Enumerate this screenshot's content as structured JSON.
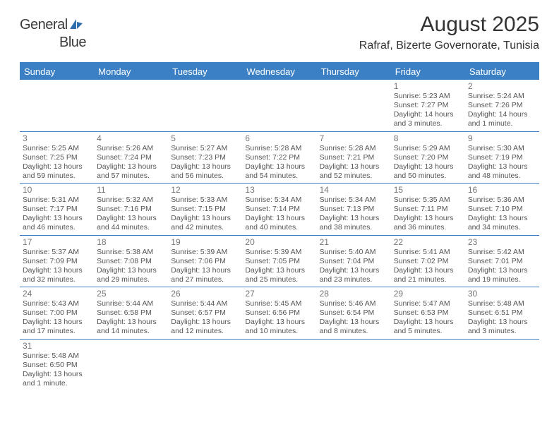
{
  "logo": {
    "general": "General",
    "blue": "Blue"
  },
  "title": "August 2025",
  "location": "Rafraf, Bizerte Governorate, Tunisia",
  "colors": {
    "header_bg": "#3b7fc4",
    "header_text": "#ffffff",
    "border": "#3b7fc4",
    "text": "#555555",
    "daynum": "#777777"
  },
  "daynames": [
    "Sunday",
    "Monday",
    "Tuesday",
    "Wednesday",
    "Thursday",
    "Friday",
    "Saturday"
  ],
  "weeks": [
    [
      null,
      null,
      null,
      null,
      null,
      {
        "n": "1",
        "sr": "Sunrise: 5:23 AM",
        "ss": "Sunset: 7:27 PM",
        "d1": "Daylight: 14 hours",
        "d2": "and 3 minutes."
      },
      {
        "n": "2",
        "sr": "Sunrise: 5:24 AM",
        "ss": "Sunset: 7:26 PM",
        "d1": "Daylight: 14 hours",
        "d2": "and 1 minute."
      }
    ],
    [
      {
        "n": "3",
        "sr": "Sunrise: 5:25 AM",
        "ss": "Sunset: 7:25 PM",
        "d1": "Daylight: 13 hours",
        "d2": "and 59 minutes."
      },
      {
        "n": "4",
        "sr": "Sunrise: 5:26 AM",
        "ss": "Sunset: 7:24 PM",
        "d1": "Daylight: 13 hours",
        "d2": "and 57 minutes."
      },
      {
        "n": "5",
        "sr": "Sunrise: 5:27 AM",
        "ss": "Sunset: 7:23 PM",
        "d1": "Daylight: 13 hours",
        "d2": "and 56 minutes."
      },
      {
        "n": "6",
        "sr": "Sunrise: 5:28 AM",
        "ss": "Sunset: 7:22 PM",
        "d1": "Daylight: 13 hours",
        "d2": "and 54 minutes."
      },
      {
        "n": "7",
        "sr": "Sunrise: 5:28 AM",
        "ss": "Sunset: 7:21 PM",
        "d1": "Daylight: 13 hours",
        "d2": "and 52 minutes."
      },
      {
        "n": "8",
        "sr": "Sunrise: 5:29 AM",
        "ss": "Sunset: 7:20 PM",
        "d1": "Daylight: 13 hours",
        "d2": "and 50 minutes."
      },
      {
        "n": "9",
        "sr": "Sunrise: 5:30 AM",
        "ss": "Sunset: 7:19 PM",
        "d1": "Daylight: 13 hours",
        "d2": "and 48 minutes."
      }
    ],
    [
      {
        "n": "10",
        "sr": "Sunrise: 5:31 AM",
        "ss": "Sunset: 7:17 PM",
        "d1": "Daylight: 13 hours",
        "d2": "and 46 minutes."
      },
      {
        "n": "11",
        "sr": "Sunrise: 5:32 AM",
        "ss": "Sunset: 7:16 PM",
        "d1": "Daylight: 13 hours",
        "d2": "and 44 minutes."
      },
      {
        "n": "12",
        "sr": "Sunrise: 5:33 AM",
        "ss": "Sunset: 7:15 PM",
        "d1": "Daylight: 13 hours",
        "d2": "and 42 minutes."
      },
      {
        "n": "13",
        "sr": "Sunrise: 5:34 AM",
        "ss": "Sunset: 7:14 PM",
        "d1": "Daylight: 13 hours",
        "d2": "and 40 minutes."
      },
      {
        "n": "14",
        "sr": "Sunrise: 5:34 AM",
        "ss": "Sunset: 7:13 PM",
        "d1": "Daylight: 13 hours",
        "d2": "and 38 minutes."
      },
      {
        "n": "15",
        "sr": "Sunrise: 5:35 AM",
        "ss": "Sunset: 7:11 PM",
        "d1": "Daylight: 13 hours",
        "d2": "and 36 minutes."
      },
      {
        "n": "16",
        "sr": "Sunrise: 5:36 AM",
        "ss": "Sunset: 7:10 PM",
        "d1": "Daylight: 13 hours",
        "d2": "and 34 minutes."
      }
    ],
    [
      {
        "n": "17",
        "sr": "Sunrise: 5:37 AM",
        "ss": "Sunset: 7:09 PM",
        "d1": "Daylight: 13 hours",
        "d2": "and 32 minutes."
      },
      {
        "n": "18",
        "sr": "Sunrise: 5:38 AM",
        "ss": "Sunset: 7:08 PM",
        "d1": "Daylight: 13 hours",
        "d2": "and 29 minutes."
      },
      {
        "n": "19",
        "sr": "Sunrise: 5:39 AM",
        "ss": "Sunset: 7:06 PM",
        "d1": "Daylight: 13 hours",
        "d2": "and 27 minutes."
      },
      {
        "n": "20",
        "sr": "Sunrise: 5:39 AM",
        "ss": "Sunset: 7:05 PM",
        "d1": "Daylight: 13 hours",
        "d2": "and 25 minutes."
      },
      {
        "n": "21",
        "sr": "Sunrise: 5:40 AM",
        "ss": "Sunset: 7:04 PM",
        "d1": "Daylight: 13 hours",
        "d2": "and 23 minutes."
      },
      {
        "n": "22",
        "sr": "Sunrise: 5:41 AM",
        "ss": "Sunset: 7:02 PM",
        "d1": "Daylight: 13 hours",
        "d2": "and 21 minutes."
      },
      {
        "n": "23",
        "sr": "Sunrise: 5:42 AM",
        "ss": "Sunset: 7:01 PM",
        "d1": "Daylight: 13 hours",
        "d2": "and 19 minutes."
      }
    ],
    [
      {
        "n": "24",
        "sr": "Sunrise: 5:43 AM",
        "ss": "Sunset: 7:00 PM",
        "d1": "Daylight: 13 hours",
        "d2": "and 17 minutes."
      },
      {
        "n": "25",
        "sr": "Sunrise: 5:44 AM",
        "ss": "Sunset: 6:58 PM",
        "d1": "Daylight: 13 hours",
        "d2": "and 14 minutes."
      },
      {
        "n": "26",
        "sr": "Sunrise: 5:44 AM",
        "ss": "Sunset: 6:57 PM",
        "d1": "Daylight: 13 hours",
        "d2": "and 12 minutes."
      },
      {
        "n": "27",
        "sr": "Sunrise: 5:45 AM",
        "ss": "Sunset: 6:56 PM",
        "d1": "Daylight: 13 hours",
        "d2": "and 10 minutes."
      },
      {
        "n": "28",
        "sr": "Sunrise: 5:46 AM",
        "ss": "Sunset: 6:54 PM",
        "d1": "Daylight: 13 hours",
        "d2": "and 8 minutes."
      },
      {
        "n": "29",
        "sr": "Sunrise: 5:47 AM",
        "ss": "Sunset: 6:53 PM",
        "d1": "Daylight: 13 hours",
        "d2": "and 5 minutes."
      },
      {
        "n": "30",
        "sr": "Sunrise: 5:48 AM",
        "ss": "Sunset: 6:51 PM",
        "d1": "Daylight: 13 hours",
        "d2": "and 3 minutes."
      }
    ],
    [
      {
        "n": "31",
        "sr": "Sunrise: 5:48 AM",
        "ss": "Sunset: 6:50 PM",
        "d1": "Daylight: 13 hours",
        "d2": "and 1 minute."
      },
      null,
      null,
      null,
      null,
      null,
      null
    ]
  ]
}
